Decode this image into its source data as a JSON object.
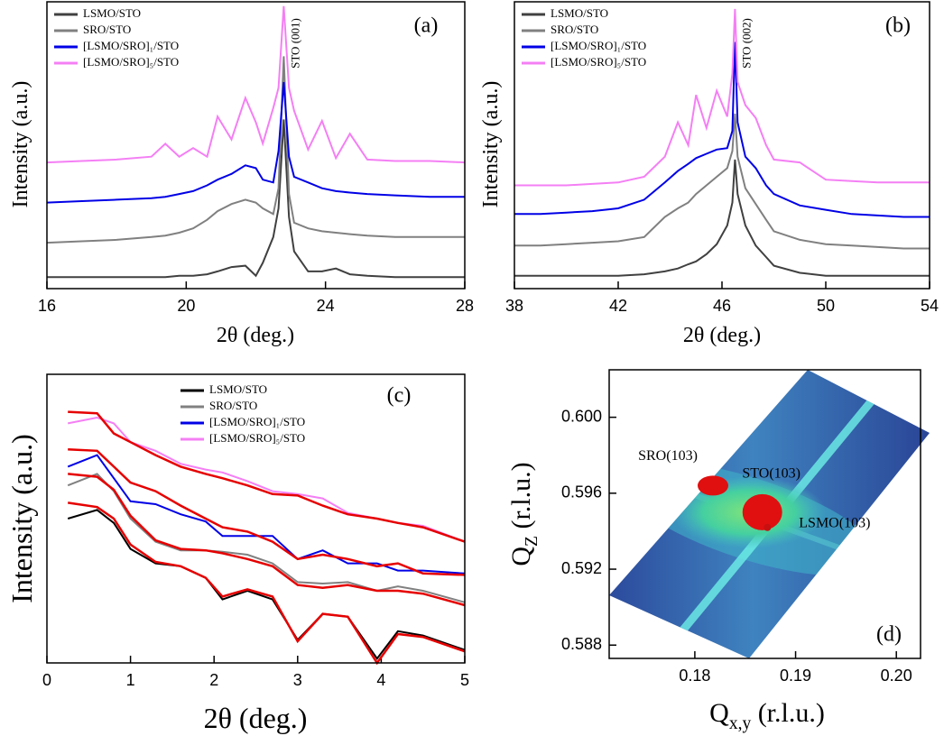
{
  "chart_data": [
    {
      "type": "line",
      "panel_label": "(a)",
      "x_label": "2θ (deg.)",
      "y_label": "Intensity (a.u.)",
      "legend": "upper left",
      "xlim": [
        16,
        28
      ],
      "xticks": [
        16,
        20,
        24,
        28
      ],
      "ylim": [
        0,
        10
      ],
      "annotation": {
        "text": "STO (001)",
        "x": 22.8
      },
      "x": [
        16,
        17,
        18,
        19,
        19.4,
        19.8,
        20.2,
        20.6,
        20.9,
        21.3,
        21.7,
        22,
        22.2,
        22.5,
        22.65,
        22.8,
        22.95,
        23.1,
        23.5,
        23.9,
        24.3,
        24.7,
        25.2,
        26,
        27,
        28
      ],
      "series": [
        {
          "name": "LSMO/STO",
          "color": "#404040",
          "values": [
            0.4,
            0.4,
            0.4,
            0.4,
            0.4,
            0.45,
            0.45,
            0.5,
            0.6,
            0.75,
            0.8,
            0.45,
            0.9,
            1.8,
            2.8,
            5.9,
            2.5,
            1.3,
            0.6,
            0.6,
            0.7,
            0.5,
            0.45,
            0.4,
            0.4,
            0.4
          ]
        },
        {
          "name": "SRO/STO",
          "color": "#808080",
          "values": [
            1.6,
            1.65,
            1.7,
            1.8,
            1.85,
            1.95,
            2.1,
            2.4,
            2.7,
            2.95,
            3.1,
            3.0,
            2.8,
            2.6,
            3.5,
            8.1,
            3.3,
            2.3,
            2.1,
            2.0,
            1.95,
            1.9,
            1.85,
            1.8,
            1.8,
            1.8
          ]
        },
        {
          "name": "[LSMO/SRO]₁/STO",
          "color": "#0000e6",
          "values": [
            3.0,
            3.05,
            3.1,
            3.15,
            3.2,
            3.3,
            3.4,
            3.6,
            3.8,
            4.0,
            4.3,
            4.2,
            3.8,
            3.7,
            4.8,
            7.2,
            4.6,
            3.9,
            3.7,
            3.5,
            3.4,
            3.35,
            3.3,
            3.25,
            3.2,
            3.2
          ]
        },
        {
          "name": "[LSMO/SRO]₅/STO",
          "color": "#f47ff4",
          "values": [
            4.4,
            4.45,
            4.5,
            4.6,
            5.05,
            4.6,
            4.9,
            4.6,
            6.0,
            5.2,
            6.65,
            5.8,
            5.06,
            6.3,
            7.0,
            9.85,
            7.0,
            6.2,
            4.85,
            5.85,
            4.55,
            5.4,
            4.5,
            4.45,
            4.45,
            4.4
          ]
        }
      ]
    },
    {
      "type": "line",
      "panel_label": "(b)",
      "x_label": "2θ (deg.)",
      "y_label": "Intensity (a.u.)",
      "legend": "upper left",
      "xlim": [
        38,
        54
      ],
      "xticks": [
        38,
        42,
        46,
        50,
        54
      ],
      "ylim": [
        0,
        10
      ],
      "annotation": {
        "text": "STO (002)",
        "x": 46.5
      },
      "x": [
        38,
        39,
        40,
        41,
        42,
        43,
        43.8,
        44.3,
        44.7,
        45,
        45.4,
        45.8,
        46.2,
        46.4,
        46.5,
        46.6,
        46.9,
        47.3,
        47.7,
        48,
        49,
        50,
        51,
        52,
        53,
        54
      ],
      "series": [
        {
          "name": "LSMO/STO",
          "color": "#404040",
          "values": [
            0.45,
            0.45,
            0.45,
            0.45,
            0.45,
            0.5,
            0.6,
            0.7,
            0.85,
            0.95,
            1.2,
            1.55,
            2.2,
            3.0,
            4.5,
            3.3,
            2.2,
            1.5,
            1.1,
            0.8,
            0.55,
            0.45,
            0.45,
            0.45,
            0.45,
            0.45
          ]
        },
        {
          "name": "SRO/STO",
          "color": "#808080",
          "values": [
            1.5,
            1.5,
            1.55,
            1.6,
            1.65,
            1.8,
            2.5,
            2.8,
            3.0,
            3.3,
            3.6,
            3.9,
            4.2,
            4.8,
            6.1,
            4.6,
            3.5,
            2.95,
            2.4,
            2.0,
            1.7,
            1.55,
            1.5,
            1.45,
            1.4,
            1.4
          ]
        },
        {
          "name": "[LSMO/SRO]₁/STO",
          "color": "#0000e6",
          "values": [
            2.6,
            2.6,
            2.65,
            2.7,
            2.8,
            3.1,
            3.7,
            4.1,
            4.35,
            4.55,
            4.7,
            4.85,
            4.9,
            5.5,
            8.6,
            5.8,
            4.6,
            4.2,
            3.6,
            3.3,
            2.9,
            2.75,
            2.6,
            2.55,
            2.5,
            2.5
          ]
        },
        {
          "name": "[LSMO/SRO]₅/STO",
          "color": "#f47ff4",
          "values": [
            3.6,
            3.6,
            3.6,
            3.65,
            3.7,
            3.9,
            4.6,
            5.8,
            5.0,
            6.75,
            5.6,
            6.9,
            6.0,
            7.5,
            9.75,
            7.2,
            6.4,
            5.95,
            5.0,
            4.5,
            4.4,
            3.8,
            3.75,
            3.7,
            3.7,
            3.7
          ]
        }
      ]
    },
    {
      "type": "line",
      "panel_label": "(c)",
      "x_label": "2θ (deg.)",
      "y_label": "Intensity (a.u.)",
      "legend": "upper center",
      "xlim": [
        0,
        5
      ],
      "xticks": [
        0,
        1,
        2,
        3,
        4,
        5
      ],
      "ylim": [
        0,
        10
      ],
      "x": [
        0.25,
        0.6,
        0.8,
        1.0,
        1.3,
        1.6,
        1.9,
        2.1,
        2.4,
        2.7,
        3.0,
        3.3,
        3.6,
        3.95,
        4.2,
        4.5,
        5.0
      ],
      "series": [
        {
          "name": "LSMO/STO",
          "color": "#000000",
          "values": [
            5.0,
            5.3,
            4.85,
            3.95,
            3.45,
            3.35,
            2.95,
            2.2,
            2.5,
            2.2,
            0.8,
            1.7,
            1.6,
            0.15,
            1.1,
            0.95,
            0.45
          ]
        },
        {
          "name": "SRO/STO",
          "color": "#808080",
          "values": [
            6.15,
            6.55,
            5.95,
            5.0,
            4.2,
            3.9,
            3.9,
            3.85,
            3.75,
            3.45,
            2.8,
            2.75,
            2.8,
            2.5,
            2.65,
            2.5,
            2.1
          ]
        },
        {
          "name": "[LSMO/SRO]₁/STO",
          "color": "#0000e6",
          "values": [
            6.8,
            7.2,
            6.4,
            5.6,
            5.5,
            5.15,
            4.9,
            4.4,
            4.4,
            4.4,
            3.6,
            3.9,
            3.45,
            3.45,
            3.2,
            3.2,
            3.1
          ]
        },
        {
          "name": "[LSMO/SRO]₅/STO",
          "color": "#f47ff4",
          "values": [
            8.3,
            8.5,
            8.3,
            7.65,
            7.35,
            6.9,
            6.7,
            6.6,
            6.3,
            5.95,
            5.85,
            5.7,
            5.2,
            5.0,
            4.85,
            4.75,
            4.2
          ]
        }
      ],
      "fits": [
        {
          "color": "#e60000",
          "values": [
            5.55,
            5.4,
            5.0,
            4.1,
            3.5,
            3.35,
            2.95,
            2.3,
            2.55,
            2.3,
            0.75,
            1.7,
            1.6,
            0.0,
            1.0,
            0.9,
            0.4
          ]
        },
        {
          "color": "#e60000",
          "values": [
            6.55,
            6.45,
            6.0,
            5.1,
            4.25,
            3.95,
            3.9,
            3.8,
            3.6,
            3.35,
            2.7,
            2.6,
            2.7,
            2.5,
            2.5,
            2.4,
            2.0
          ]
        },
        {
          "color": "#e60000",
          "values": [
            7.4,
            7.35,
            6.8,
            6.25,
            5.95,
            5.45,
            5.0,
            4.7,
            4.55,
            4.2,
            3.6,
            3.75,
            3.6,
            3.35,
            3.45,
            3.1,
            3.05
          ]
        },
        {
          "color": "#e60000",
          "values": [
            8.7,
            8.65,
            7.95,
            7.65,
            7.2,
            6.8,
            6.55,
            6.4,
            6.15,
            5.85,
            5.8,
            5.45,
            5.15,
            5.0,
            4.85,
            4.7,
            4.2
          ]
        }
      ]
    },
    {
      "type": "map",
      "panel_label": "(d)",
      "x_label": "Q",
      "x_label_sub": "x,y",
      "x_label_unit": " (r.l.u.)",
      "y_label": "Q",
      "y_label_sub": "Z",
      "y_label_unit": " (r.l.u.)",
      "xlim": [
        0.1715,
        0.2024
      ],
      "xticks": [
        0.18,
        0.19,
        {
          "value": 0.2,
          "label": "0.20"
        }
      ],
      "ylim": [
        0.5873,
        0.6025
      ],
      "yticks": [
        0.588,
        0.592,
        0.596,
        {
          "value": 0.6,
          "label": "0.600"
        }
      ],
      "peaks": [
        {
          "label": "SRO(103)",
          "x": 0.1818,
          "y": 0.5964
        },
        {
          "label": "STO(103)",
          "x": 0.1867,
          "y": 0.595
        },
        {
          "label": "LSMO(103)",
          "x": 0.1872,
          "y": 0.5942
        }
      ]
    }
  ]
}
